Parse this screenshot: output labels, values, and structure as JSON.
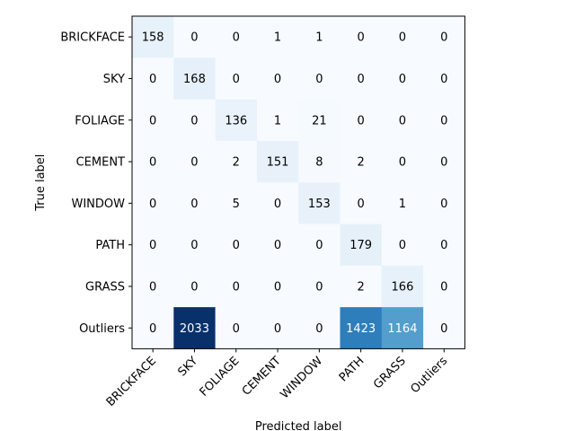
{
  "chart_data": {
    "type": "heatmap",
    "title": "",
    "xlabel": "Predicted label",
    "ylabel": "True label",
    "x_categories": [
      "BRICKFACE",
      "SKY",
      "FOLIAGE",
      "CEMENT",
      "WINDOW",
      "PATH",
      "GRASS",
      "Outliers"
    ],
    "y_categories": [
      "BRICKFACE",
      "SKY",
      "FOLIAGE",
      "CEMENT",
      "WINDOW",
      "PATH",
      "GRASS",
      "Outliers"
    ],
    "values": [
      [
        158,
        0,
        0,
        1,
        1,
        0,
        0,
        0
      ],
      [
        0,
        168,
        0,
        0,
        0,
        0,
        0,
        0
      ],
      [
        0,
        0,
        136,
        1,
        21,
        0,
        0,
        0
      ],
      [
        0,
        0,
        2,
        151,
        8,
        2,
        0,
        0
      ],
      [
        0,
        0,
        5,
        0,
        153,
        0,
        1,
        0
      ],
      [
        0,
        0,
        0,
        0,
        0,
        179,
        0,
        0
      ],
      [
        0,
        0,
        0,
        0,
        0,
        2,
        166,
        0
      ],
      [
        0,
        2033,
        0,
        0,
        0,
        1423,
        1164,
        0
      ]
    ],
    "colormap": "Blues",
    "color_range": [
      0,
      2033
    ],
    "grid": false,
    "legend": "none"
  }
}
